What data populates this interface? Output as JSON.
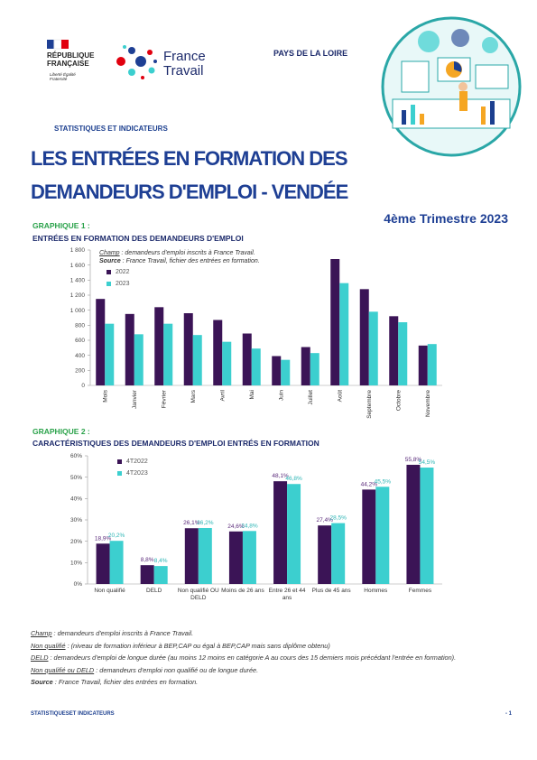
{
  "header": {
    "republique": "RÉPUBLIQUE FRANÇAISE",
    "devise": "Liberté Égalité Fraternité",
    "brand": "France Travail",
    "region": "PAYS DE LA LOIRE",
    "section": "STATISTIQUES ET INDICATEURS"
  },
  "title": {
    "line1": "LES ENTRÉES EN FORMATION DES",
    "line2": "DEMANDEURS D'EMPLOI - VENDÉE",
    "period": "4ème Trimestre 2023"
  },
  "chart_data": [
    {
      "type": "bar",
      "label": "GRAPHIQUE 1 :",
      "title": "ENTRÉES EN FORMATION DES DEMANDEURS D'EMPLOI",
      "notes": [
        {
          "term": "Champ",
          "text": " : demandeurs d'emploi inscrits à France Travail."
        },
        {
          "term": "Source",
          "text": " : France Travail, fichier des entrées en formation."
        }
      ],
      "categories": [
        "Mois",
        "Janvier",
        "Février",
        "Mars",
        "Avril",
        "Mai",
        "Juin",
        "Juillet",
        "Août",
        "Septembre",
        "Octobre",
        "Novembre"
      ],
      "series": [
        {
          "name": "2022",
          "color": "#3b1456",
          "values": [
            1150,
            950,
            1040,
            960,
            870,
            690,
            390,
            510,
            1680,
            1280,
            920,
            530
          ]
        },
        {
          "name": "2023",
          "color": "#3ccfcf",
          "values": [
            820,
            680,
            820,
            670,
            580,
            490,
            340,
            430,
            1360,
            980,
            840,
            550
          ]
        }
      ],
      "ylim": [
        0,
        1800
      ],
      "yticks": [
        0,
        200,
        400,
        600,
        800,
        {
          "value": 1000,
          "label": "1 000"
        },
        {
          "value": 1200,
          "label": "1 200"
        },
        {
          "value": 1400,
          "label": "1 400"
        },
        {
          "value": 1600,
          "label": "1 600"
        },
        {
          "value": 1800,
          "label": "1 800"
        }
      ],
      "grid": false,
      "legend": "upper left"
    },
    {
      "type": "bar",
      "label": "GRAPHIQUE 2 :",
      "title": "CARACTÉRISTIQUES DES DEMANDEURS D'EMPLOI ENTRÉS EN FORMATION",
      "categories": [
        "Non qualifié",
        "DELD",
        "Non qualifié OU DELD",
        "Moins de 26 ans",
        "Entre 26 et 44 ans",
        "Plus de 45 ans",
        "Hommes",
        "Femmes"
      ],
      "series": [
        {
          "name": "4T2022",
          "color": "#3b1456",
          "values": [
            18.9,
            8.8,
            26.1,
            24.6,
            48.1,
            27.4,
            44.2,
            55.8
          ],
          "value_labels": [
            "18,9%",
            "8,8%",
            "26,1%",
            "24,6%",
            "48,1%",
            "27,4%",
            "44,2%",
            "55,8%"
          ]
        },
        {
          "name": "4T2023",
          "color": "#3ccfcf",
          "values": [
            20.2,
            8.4,
            26.2,
            24.8,
            46.8,
            28.5,
            45.5,
            54.5
          ],
          "value_labels": [
            "20,2%",
            "8,4%",
            "26,2%",
            "24,8%",
            "46,8%",
            "28,5%",
            "45,5%",
            "54,5%"
          ]
        }
      ],
      "ylim": [
        0,
        60
      ],
      "yticks": [
        {
          "value": 0,
          "label": "0%"
        },
        {
          "value": 10,
          "label": "10%"
        },
        {
          "value": 20,
          "label": "20%"
        },
        {
          "value": 30,
          "label": "30%"
        },
        {
          "value": 40,
          "label": "40%"
        },
        {
          "value": 50,
          "label": "50%"
        },
        {
          "value": 60,
          "label": "60%"
        }
      ],
      "grid": false,
      "legend": "upper left"
    }
  ],
  "notes": [
    {
      "term": "Champ",
      "text": " : demandeurs d'emploi inscrits à France Travail."
    },
    {
      "term": "Non qualifié",
      "text": " : (niveau de formation inférieur à BEP,CAP ou égal à BEP,CAP mais sans diplôme obtenu)"
    },
    {
      "term": "DELD",
      "text": " : demandeurs d'emploi de longue durée (au moins 12 moins en catégorie A au cours des 15 derniers mois précédant l'entrée en formation)."
    },
    {
      "term": "Non qualifié ou DELD",
      "text": " : demandeurs d'emploi non qualifié ou de longue durée."
    },
    {
      "term": "Source",
      "text": " : France Travail, fichier des entrées en formation."
    }
  ],
  "footer": {
    "left": "STATISTIQUESET INDICATEURS",
    "right": "- 1"
  }
}
